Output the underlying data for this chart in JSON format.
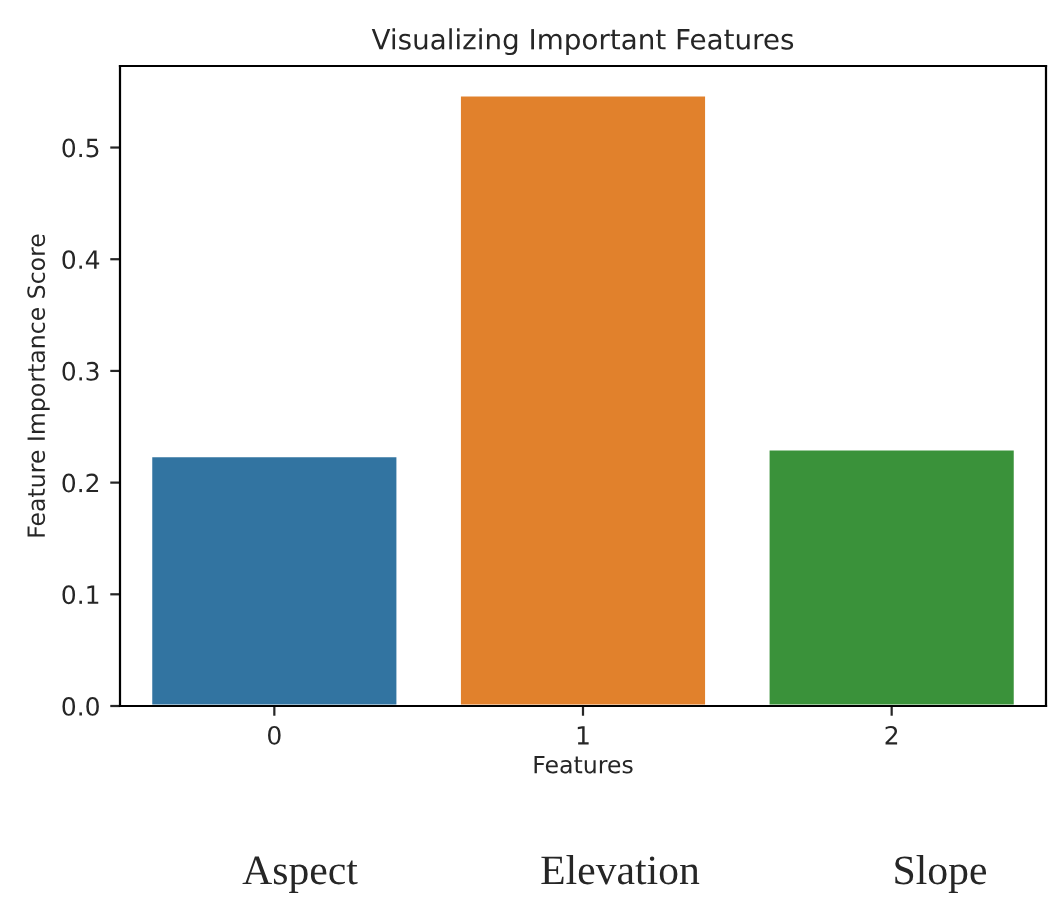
{
  "chart_data": {
    "type": "bar",
    "title": "Visualizing Important Features",
    "xlabel": "Features",
    "ylabel": "Feature Importance Score",
    "categories": [
      "0",
      "1",
      "2"
    ],
    "values": [
      0.224,
      0.547,
      0.23
    ],
    "colors": [
      "#3274a1",
      "#e1812c",
      "#3a923a"
    ],
    "ylim": [
      0,
      0.573
    ],
    "yticks": [
      {
        "value": 0,
        "label": "0.0"
      },
      0.1,
      0.2,
      0.3,
      0.4,
      0.5
    ],
    "grid": false,
    "annotations": [
      "Aspect",
      "Elevation",
      "Slope"
    ]
  }
}
